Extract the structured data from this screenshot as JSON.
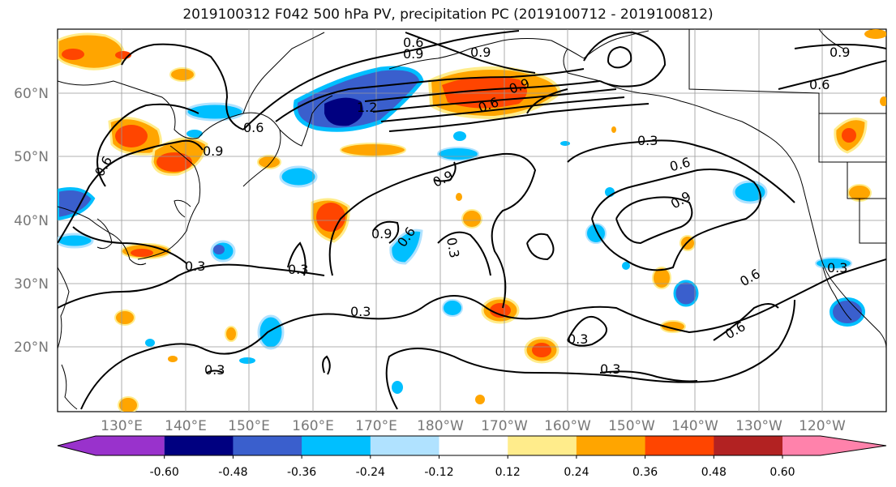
{
  "title": "2019100312 F042 500 hPa PV, precipitation PC (2019100712 - 2019100812)",
  "lat_labels": [
    "60°N",
    "50°N",
    "40°N",
    "30°N",
    "20°N"
  ],
  "lon_labels": [
    "130°E",
    "140°E",
    "150°E",
    "160°E",
    "170°E",
    "180°W",
    "170°W",
    "160°W",
    "150°W",
    "140°W",
    "130°W",
    "120°W"
  ],
  "contour_labels": [
    "0.6",
    "0.9",
    "0.6",
    "0.6",
    "0.9",
    "0.3",
    "0.3",
    "0.3",
    "0.3",
    "0.6",
    "0.9",
    "0.3",
    "0.3",
    "0.3",
    "0.6",
    "0.9",
    "0.6",
    "0.3",
    "0.9",
    "0.9",
    "0.6",
    "0.9",
    "0.6",
    "0.6",
    "1.2",
    "0.9",
    "0.3"
  ],
  "colorbar": {
    "colors": [
      "#9932cc",
      "#000080",
      "#3a5fcd",
      "#00bfff",
      "#b0e2ff",
      "#ffffff",
      "#ffec8b",
      "#ffa500",
      "#ff4500",
      "#b22222",
      "#ff82ab"
    ],
    "tick_labels": [
      "-0.60",
      "-0.48",
      "-0.36",
      "-0.24",
      "-0.12",
      "0.12",
      "0.24",
      "0.36",
      "0.48",
      "0.60"
    ]
  }
}
